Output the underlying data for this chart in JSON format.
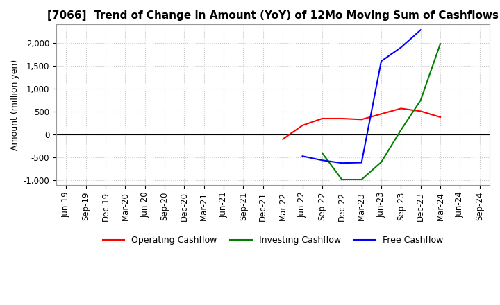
{
  "title": "[7066]  Trend of Change in Amount (YoY) of 12Mo Moving Sum of Cashflows",
  "ylabel": "Amount (million yen)",
  "ylim": [
    -1100,
    2400
  ],
  "yticks": [
    -1000,
    -500,
    0,
    500,
    1000,
    1500,
    2000
  ],
  "x_labels": [
    "Jun-19",
    "Sep-19",
    "Dec-19",
    "Mar-20",
    "Jun-20",
    "Sep-20",
    "Dec-20",
    "Mar-21",
    "Jun-21",
    "Sep-21",
    "Dec-21",
    "Mar-22",
    "Jun-22",
    "Sep-22",
    "Dec-22",
    "Mar-23",
    "Jun-23",
    "Sep-23",
    "Dec-23",
    "Mar-24",
    "Jun-24",
    "Sep-24"
  ],
  "operating": {
    "y": [
      null,
      null,
      null,
      null,
      null,
      null,
      null,
      null,
      null,
      null,
      null,
      -100,
      200,
      350,
      350,
      330,
      450,
      570,
      510,
      380,
      null,
      null
    ],
    "color": "#FF0000"
  },
  "investing": {
    "y": [
      null,
      null,
      null,
      null,
      null,
      null,
      null,
      null,
      null,
      null,
      null,
      null,
      null,
      -400,
      -980,
      -980,
      -600,
      100,
      750,
      1980,
      null,
      null
    ],
    "color": "#008000"
  },
  "free": {
    "y": [
      null,
      null,
      null,
      null,
      null,
      null,
      null,
      null,
      null,
      null,
      null,
      null,
      -470,
      -560,
      -620,
      -610,
      1600,
      1900,
      2280,
      null,
      null,
      null
    ],
    "color": "#0000FF"
  },
  "background_color": "#ffffff",
  "grid_color": "#c8c8c8",
  "title_fontsize": 11,
  "axis_fontsize": 9,
  "tick_fontsize": 8.5
}
